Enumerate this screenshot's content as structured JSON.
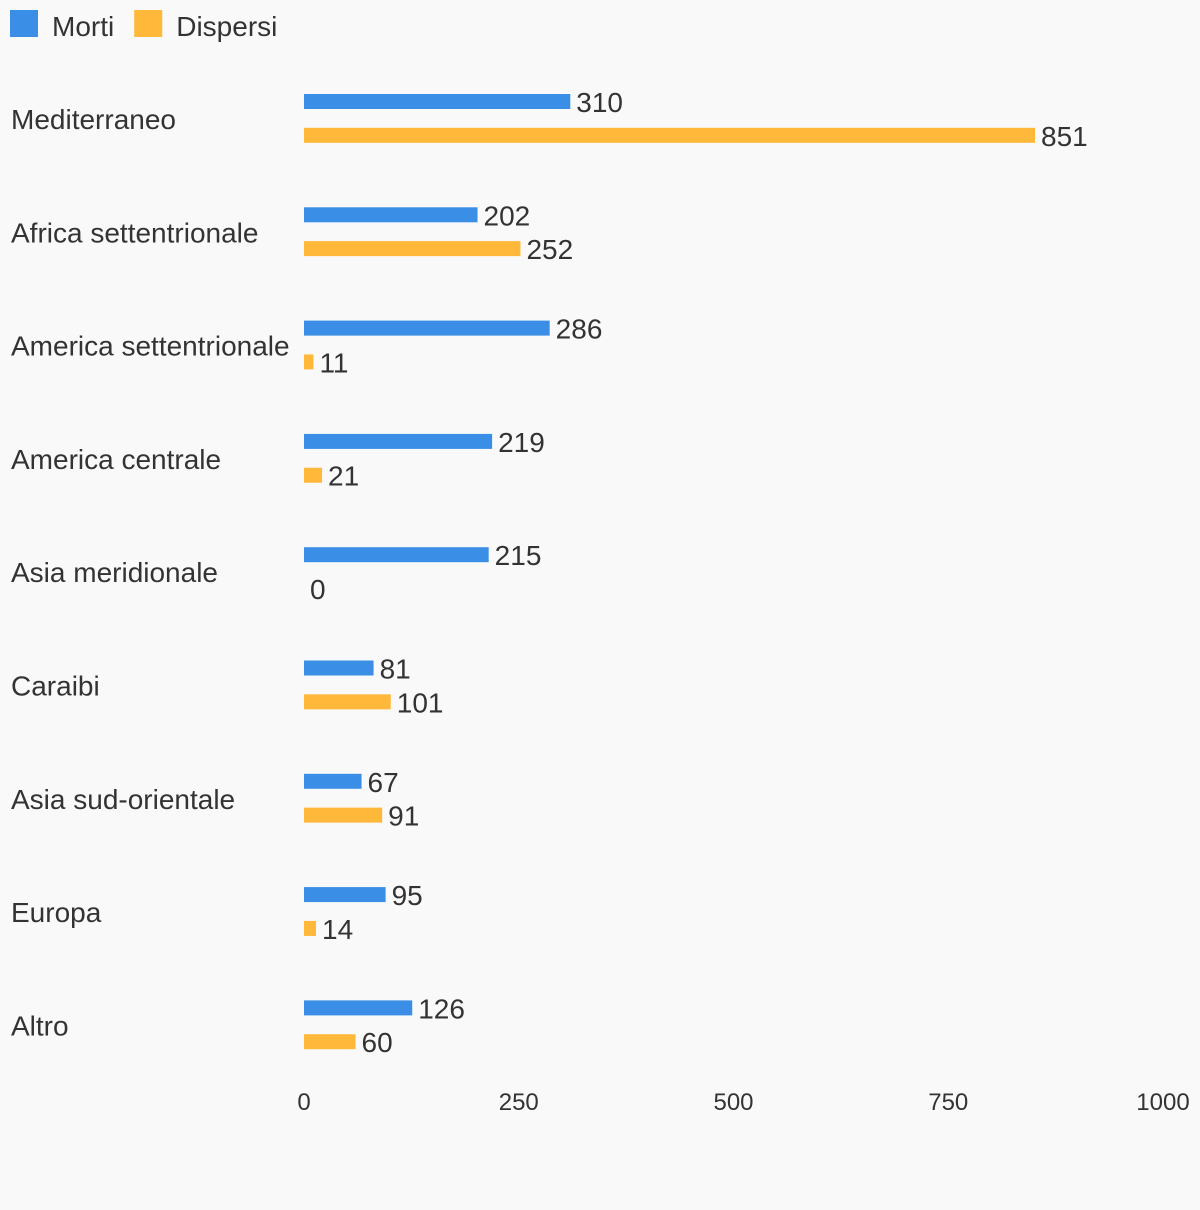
{
  "chart_data": {
    "type": "bar",
    "orientation": "horizontal",
    "categories": [
      "Mediterraneo",
      "Africa settentrionale",
      "America settentrionale",
      "America centrale",
      "Asia meridionale",
      "Caraibi",
      "Asia sud-orientale",
      "Europa",
      "Altro"
    ],
    "series": [
      {
        "name": "Morti",
        "color": "#3a8ee6",
        "values": [
          310,
          202,
          286,
          219,
          215,
          81,
          67,
          95,
          126
        ]
      },
      {
        "name": "Dispersi",
        "color": "#ffb83a",
        "values": [
          851,
          252,
          11,
          21,
          0,
          101,
          91,
          14,
          60
        ]
      }
    ],
    "xlim": [
      0,
      1000
    ],
    "xticks": [
      0,
      250,
      500,
      750,
      1000
    ],
    "title": "",
    "xlabel": "",
    "ylabel": "",
    "legend": "top-left",
    "grid": false
  }
}
